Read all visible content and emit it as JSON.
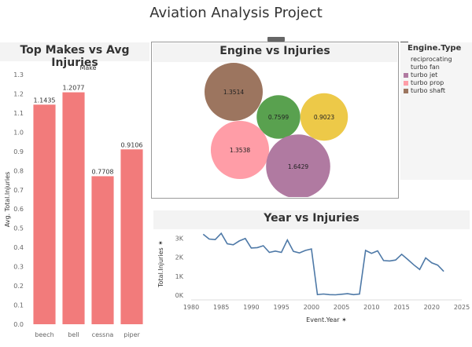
{
  "page": {
    "title": "Aviation Analysis Project"
  },
  "bar_panel": {
    "title": "Top Makes vs Avg Injuries"
  },
  "bubble_panel": {
    "title": "Engine vs Injuries"
  },
  "line_panel": {
    "title": "Year vs Injuries"
  },
  "legend": {
    "title": "Engine.Type",
    "items": [
      {
        "label": "reciprocating",
        "color": "#5a9bd4",
        "shape": "none"
      },
      {
        "label": "turbo fan",
        "color": "#4a4a4a",
        "shape": "none"
      },
      {
        "label": "turbo jet",
        "color": "#b07aa1",
        "shape": "square"
      },
      {
        "label": "turbo prop",
        "color": "#ff9da7",
        "shape": "square"
      },
      {
        "label": "turbo shaft",
        "color": "#9c755f",
        "shape": "square"
      }
    ]
  },
  "toolbar": {
    "icons": [
      "close-icon",
      "popout-icon",
      "filter-icon",
      "more-icon"
    ]
  },
  "chart_data": [
    {
      "type": "bar",
      "title": "Top Makes vs Avg Injuries",
      "xlabel": "Make",
      "ylabel": "Avg. Total.Injuries",
      "categories": [
        "beech",
        "bell",
        "cessna",
        "piper"
      ],
      "values": [
        1.1435,
        1.2077,
        0.7708,
        0.9106
      ],
      "data_labels": [
        "1.1435",
        "1.2077",
        "0.7708",
        "0.9106"
      ],
      "ylim": [
        0,
        1.3
      ],
      "yticks": [
        "0.0",
        "0.1",
        "0.2",
        "0.3",
        "0.4",
        "0.5",
        "0.6",
        "0.7",
        "0.8",
        "0.9",
        "1.0",
        "1.1",
        "1.2",
        "1.3"
      ],
      "color": "#f27b7b",
      "xlabel_position": "top"
    },
    {
      "type": "scatter",
      "subtype": "packed-bubble",
      "title": "Engine vs Injuries",
      "bubbles": [
        {
          "value": 1.3514,
          "label": "1.3514",
          "color": "#9c755f"
        },
        {
          "value": 0.7599,
          "label": "0.7599",
          "color": "#59a14f"
        },
        {
          "value": 0.9023,
          "label": "0.9023",
          "color": "#edc948"
        },
        {
          "value": 1.3538,
          "label": "1.3538",
          "color": "#ff9da7"
        },
        {
          "value": 1.6429,
          "label": "1.6429",
          "color": "#b07aa1"
        }
      ]
    },
    {
      "type": "line",
      "title": "Year vs Injuries",
      "xlabel": "Event.Year",
      "ylabel": "Total.Injuries",
      "xlim": [
        1980,
        2025
      ],
      "ylim": [
        0,
        3300
      ],
      "xticks": [
        "1980",
        "1985",
        "1990",
        "1995",
        "2000",
        "2005",
        "2010",
        "2015",
        "2020",
        "2025"
      ],
      "yticks": [
        "0K",
        "1K",
        "2K",
        "3K"
      ],
      "color": "#4e79a7",
      "x": [
        1982,
        1983,
        1984,
        1985,
        1986,
        1987,
        1988,
        1989,
        1990,
        1991,
        1992,
        1993,
        1994,
        1995,
        1996,
        1997,
        1998,
        1999,
        2000,
        2001,
        2002,
        2003,
        2004,
        2005,
        2006,
        2007,
        2008,
        2009,
        2010,
        2011,
        2012,
        2013,
        2014,
        2015,
        2016,
        2017,
        2018,
        2019,
        2020,
        2021,
        2022
      ],
      "y": [
        3200,
        2950,
        2920,
        3250,
        2700,
        2650,
        2850,
        2980,
        2480,
        2500,
        2600,
        2250,
        2320,
        2250,
        2900,
        2300,
        2220,
        2350,
        2430,
        30,
        60,
        30,
        20,
        50,
        80,
        30,
        60,
        2350,
        2200,
        2330,
        1820,
        1800,
        1850,
        2150,
        1880,
        1600,
        1350,
        1960,
        1700,
        1580,
        1250
      ]
    }
  ]
}
